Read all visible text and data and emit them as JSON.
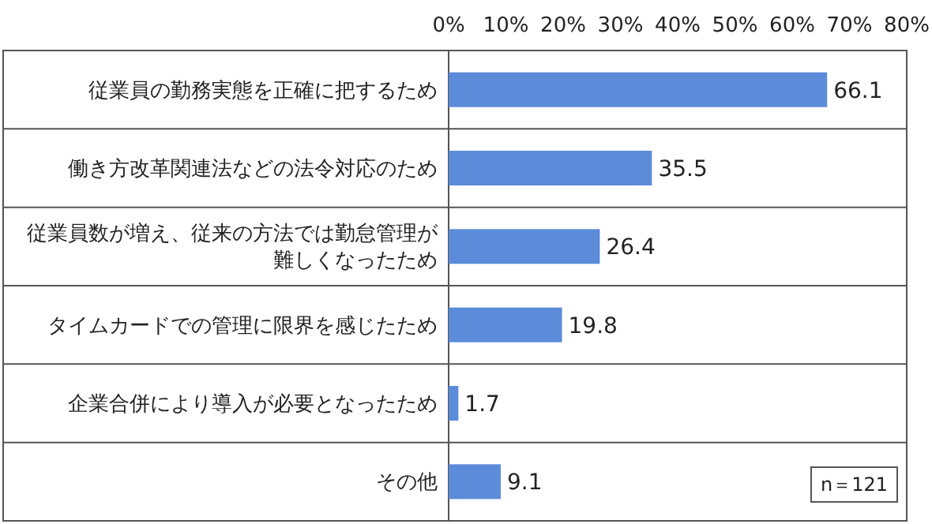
{
  "chart_data": {
    "type": "bar",
    "orientation": "horizontal",
    "categories": [
      "従業員の勤務実態を正確に把するため",
      "働き方改革関連法などの法令対応のため",
      "従業員数が増え、従来の方法では勤怠管理が難しくなったため",
      "タイムカードでの管理に限界を感じたため",
      "企業合併により導入が必要となったため",
      "その他"
    ],
    "values": [
      66.1,
      35.5,
      26.4,
      19.8,
      1.7,
      9.1
    ],
    "color": "#5b8bd9",
    "xlim": [
      0,
      80
    ],
    "xticks": [
      {
        "value": 0,
        "label": "0%"
      },
      {
        "value": 10,
        "label": "10%"
      },
      {
        "value": 20,
        "label": "20%"
      },
      {
        "value": 30,
        "label": "30%"
      },
      {
        "value": 40,
        "label": "40%"
      },
      {
        "value": 50,
        "label": "50%"
      },
      {
        "value": 60,
        "label": "60%"
      },
      {
        "value": 70,
        "label": "70%"
      },
      {
        "value": 80,
        "label": "80%"
      }
    ],
    "data_labels": true,
    "annotations": [
      "n＝121"
    ]
  }
}
